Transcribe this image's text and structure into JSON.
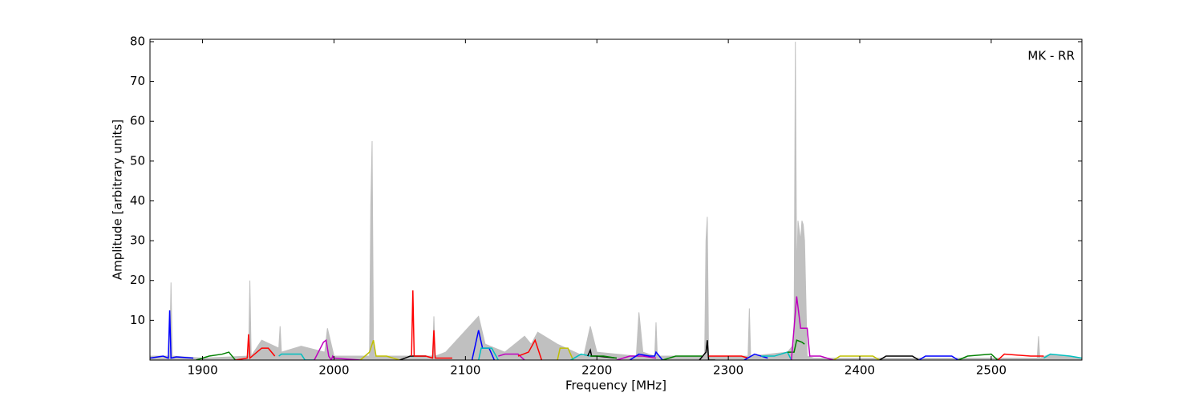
{
  "chart_data": {
    "type": "line",
    "xlabel": "Frequency [MHz]",
    "ylabel": "Amplitude [arbitrary units]",
    "annotation": "MK - RR",
    "xlim": [
      1860,
      2569
    ],
    "ylim": [
      0,
      80.6
    ],
    "xticks": [
      1900,
      2000,
      2100,
      2200,
      2300,
      2400,
      2500
    ],
    "yticks": [
      10,
      20,
      30,
      40,
      50,
      60,
      70,
      80
    ],
    "series": [
      {
        "color": "#c0c0c0",
        "fill": true,
        "x": [
          1860,
          1875,
          1876,
          1877,
          1900,
          1935,
          1936,
          1937,
          1945,
          1958,
          1959,
          1960,
          1975,
          1993,
          1995,
          2000,
          2027,
          2028,
          2029,
          2030,
          2031,
          2040,
          2075,
          2076,
          2077,
          2085,
          2110,
          2115,
          2130,
          2145,
          2150,
          2155,
          2170,
          2190,
          2195,
          2200,
          2230,
          2232,
          2235,
          2244,
          2245,
          2246,
          2282,
          2283,
          2284,
          2285,
          2300,
          2315,
          2316,
          2317,
          2345,
          2350,
          2351,
          2352,
          2353,
          2355,
          2356,
          2357,
          2358,
          2360,
          2365,
          2535,
          2536,
          2537,
          2545,
          2569
        ],
        "values": [
          1,
          1,
          19.5,
          1,
          0.5,
          1,
          20,
          1,
          5,
          3,
          8.5,
          2,
          3.5,
          2,
          8,
          1,
          1,
          39,
          55,
          5,
          1,
          1,
          1,
          11,
          1,
          2,
          11,
          4,
          2,
          6,
          4,
          7,
          4,
          1,
          8.5,
          2,
          1,
          12,
          2,
          1,
          9.5,
          1,
          1,
          30,
          36,
          1,
          1,
          1,
          13,
          1,
          2,
          4,
          80,
          20,
          35,
          30,
          35,
          34,
          30,
          1,
          0.5,
          0.5,
          6,
          0.5,
          1.5,
          0.5
        ]
      },
      {
        "color": "#0000ff",
        "x": [
          1860,
          1870,
          1874,
          1875,
          1876,
          1880,
          1893
        ],
        "values": [
          0.5,
          1,
          0.5,
          12.5,
          0.5,
          0.8,
          0.5
        ]
      },
      {
        "color": "#008000",
        "x": [
          1895,
          1905,
          1915,
          1920,
          1925
        ],
        "values": [
          0,
          1,
          1.5,
          2,
          0
        ]
      },
      {
        "color": "#ff0000",
        "x": [
          1925,
          1934,
          1935,
          1936,
          1945,
          1950,
          1955
        ],
        "values": [
          0,
          0.5,
          6.5,
          0.5,
          3,
          3,
          1
        ]
      },
      {
        "color": "#00bfbf",
        "x": [
          1958,
          1960,
          1975,
          1978,
          1985
        ],
        "values": [
          1,
          1.5,
          1.5,
          0,
          0
        ]
      },
      {
        "color": "#bf00bf",
        "x": [
          1985,
          1992,
          1994,
          1996,
          1998,
          1999,
          2000,
          2020
        ],
        "values": [
          0,
          4.5,
          5,
          1,
          0,
          1,
          0.5,
          0
        ]
      },
      {
        "color": "#bfbf00",
        "x": [
          2020,
          2027,
          2030,
          2032,
          2040,
          2050
        ],
        "values": [
          0,
          2,
          5,
          1,
          1,
          0
        ]
      },
      {
        "color": "#000000",
        "x": [
          2050,
          2058,
          2070
        ],
        "values": [
          0,
          1,
          1
        ]
      },
      {
        "color": "#ff0000",
        "x": [
          2059,
          2060,
          2061,
          2070,
          2075,
          2076,
          2077,
          2090
        ],
        "values": [
          1,
          17.5,
          1,
          1,
          0.5,
          7.5,
          0.5,
          0.5
        ]
      },
      {
        "color": "#0000ff",
        "x": [
          2105,
          2110,
          2113,
          2118,
          2122
        ],
        "values": [
          0,
          7.5,
          3,
          3,
          0
        ]
      },
      {
        "color": "#00bfbf",
        "x": [
          2110,
          2112,
          2120,
          2125
        ],
        "values": [
          0,
          3,
          3,
          0
        ]
      },
      {
        "color": "#bf00bf",
        "x": [
          2125,
          2130,
          2140,
          2145
        ],
        "values": [
          1,
          1.5,
          1.5,
          0
        ]
      },
      {
        "color": "#ff0000",
        "x": [
          2140,
          2148,
          2153,
          2158
        ],
        "values": [
          1,
          2,
          5,
          0
        ]
      },
      {
        "color": "#bfbf00",
        "x": [
          2170,
          2172,
          2178,
          2182
        ],
        "values": [
          0,
          3,
          3,
          0
        ]
      },
      {
        "color": "#00bfbf",
        "x": [
          2180,
          2188,
          2195
        ],
        "values": [
          0,
          1.5,
          1
        ]
      },
      {
        "color": "#000000",
        "x": [
          2193,
          2195,
          2196,
          2200,
          2215
        ],
        "values": [
          1,
          2.5,
          1,
          1,
          0.5
        ]
      },
      {
        "color": "#008000",
        "x": [
          2195,
          2205,
          2215
        ],
        "values": [
          1,
          1,
          0.5
        ]
      },
      {
        "color": "#bf00bf",
        "x": [
          2215,
          2225,
          2235,
          2245
        ],
        "values": [
          0,
          1,
          1,
          0.5
        ]
      },
      {
        "color": "#0000ff",
        "x": [
          2225,
          2232,
          2240,
          2244,
          2245,
          2250
        ],
        "values": [
          0,
          1.5,
          1,
          1,
          2,
          0
        ]
      },
      {
        "color": "#008000",
        "x": [
          2250,
          2260,
          2280
        ],
        "values": [
          0,
          1,
          1
        ]
      },
      {
        "color": "#000000",
        "x": [
          2278,
          2283,
          2284,
          2285,
          2290
        ],
        "values": [
          0,
          2,
          5,
          0,
          0
        ]
      },
      {
        "color": "#ff0000",
        "x": [
          2285,
          2295,
          2310,
          2315
        ],
        "values": [
          1,
          1,
          1,
          0.5
        ]
      },
      {
        "color": "#0000ff",
        "x": [
          2312,
          2320,
          2330
        ],
        "values": [
          0,
          1.5,
          0.5
        ]
      },
      {
        "color": "#00bfbf",
        "x": [
          2325,
          2335,
          2345,
          2348
        ],
        "values": [
          1,
          1,
          2,
          0
        ]
      },
      {
        "color": "#008000",
        "x": [
          2345,
          2350,
          2352,
          2356,
          2358
        ],
        "values": [
          2,
          2,
          5,
          4.5,
          4
        ]
      },
      {
        "color": "#bf00bf",
        "x": [
          2348,
          2351,
          2352,
          2355,
          2360,
          2362,
          2370,
          2380
        ],
        "values": [
          0,
          12,
          16,
          8,
          8,
          1,
          1,
          0
        ]
      },
      {
        "color": "#bfbf00",
        "x": [
          2380,
          2385,
          2410,
          2415
        ],
        "values": [
          0,
          1,
          1,
          0
        ]
      },
      {
        "color": "#000000",
        "x": [
          2415,
          2420,
          2440,
          2445
        ],
        "values": [
          0,
          1,
          1,
          0
        ]
      },
      {
        "color": "#0000ff",
        "x": [
          2445,
          2450,
          2470,
          2475
        ],
        "values": [
          0,
          1,
          1,
          0
        ]
      },
      {
        "color": "#008000",
        "x": [
          2475,
          2482,
          2500,
          2505
        ],
        "values": [
          0,
          1,
          1.5,
          0
        ]
      },
      {
        "color": "#ff0000",
        "x": [
          2505,
          2510,
          2530,
          2540
        ],
        "values": [
          0,
          1.5,
          1,
          1
        ]
      },
      {
        "color": "#00bfbf",
        "x": [
          2540,
          2545,
          2560,
          2569
        ],
        "values": [
          0.5,
          1.5,
          1,
          0.5
        ]
      }
    ]
  }
}
